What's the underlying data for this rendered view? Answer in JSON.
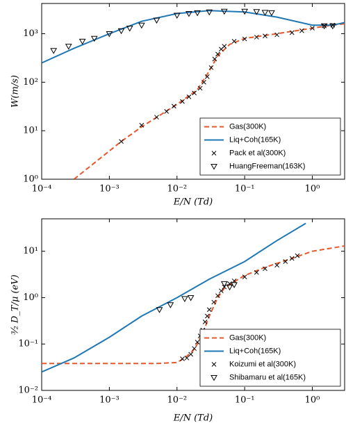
{
  "chart_data": [
    {
      "type": "line",
      "log_scale": true,
      "xlabel": "E/N (Td)",
      "ylabel": "W(m/s)",
      "legend": "lower right",
      "xlim": [
        0.0001,
        3
      ],
      "ylim": [
        1,
        4200
      ],
      "xticks": [
        {
          "value": 0.0001,
          "label": "10⁻⁴"
        },
        {
          "value": 0.001,
          "label": "10⁻³"
        },
        {
          "value": 0.01,
          "label": "10⁻²"
        },
        {
          "value": 0.1,
          "label": "10⁻¹"
        },
        {
          "value": 1,
          "label": "10⁰"
        }
      ],
      "yticks": [
        {
          "value": 1,
          "label": "10⁰"
        },
        {
          "value": 10,
          "label": "10¹"
        },
        {
          "value": 100,
          "label": "10²"
        },
        {
          "value": 1000,
          "label": "10³"
        }
      ],
      "series": [
        {
          "name": "Gas(300K)",
          "color": "#e8572a",
          "marker": "dashed",
          "x": [
            0.0003,
            0.0015,
            0.003,
            0.01,
            0.02,
            0.03,
            0.04,
            0.06,
            0.1,
            0.3,
            1,
            2,
            3
          ],
          "values": [
            1,
            6,
            12,
            35,
            70,
            170,
            350,
            600,
            800,
            1000,
            1300,
            1500,
            1600
          ]
        },
        {
          "name": "Liq+Coh(165K)",
          "color": "#1f77b4",
          "marker": "solid",
          "x": [
            0.0001,
            0.0003,
            0.001,
            0.003,
            0.01,
            0.03,
            0.1,
            0.3,
            1,
            2,
            3
          ],
          "values": [
            250,
            500,
            1000,
            1800,
            2600,
            3000,
            2800,
            2200,
            1500,
            1500,
            1700
          ]
        },
        {
          "name": "Pack et al(300K)",
          "color": "#000000",
          "marker": "x",
          "x": [
            0.0015,
            0.003,
            0.005,
            0.007,
            0.009,
            0.012,
            0.015,
            0.018,
            0.022,
            0.025,
            0.028,
            0.032,
            0.036,
            0.04,
            0.045,
            0.05,
            0.07,
            0.1,
            0.15,
            0.2,
            0.3,
            0.5,
            0.7,
            1,
            1.5,
            2
          ],
          "values": [
            6,
            13,
            19,
            25,
            32,
            40,
            50,
            60,
            75,
            100,
            130,
            200,
            300,
            380,
            480,
            550,
            700,
            780,
            850,
            900,
            950,
            1050,
            1150,
            1300,
            1450,
            1500
          ]
        },
        {
          "name": "HuangFreeman(163K)",
          "color": "#000000",
          "marker": "triangle",
          "x": [
            0.00015,
            0.00025,
            0.0004,
            0.0006,
            0.001,
            0.0015,
            0.002,
            0.003,
            0.005,
            0.01,
            0.015,
            0.02,
            0.03,
            0.05,
            0.1,
            0.15,
            0.2,
            0.25,
            1.5,
            2
          ],
          "values": [
            450,
            550,
            700,
            800,
            1000,
            1150,
            1300,
            1500,
            1900,
            2400,
            2600,
            2700,
            2800,
            2900,
            2900,
            2850,
            2750,
            2700,
            1450,
            1450
          ]
        }
      ]
    },
    {
      "type": "line",
      "log_scale": true,
      "xlabel": "E/N (Td)",
      "ylabel": "³⁄₂ D_T/μ (eV)",
      "legend": "lower right",
      "xlim": [
        0.0001,
        3
      ],
      "ylim": [
        0.01,
        50
      ],
      "xticks": [
        {
          "value": 0.0001,
          "label": "10⁻⁴"
        },
        {
          "value": 0.001,
          "label": "10⁻³"
        },
        {
          "value": 0.01,
          "label": "10⁻²"
        },
        {
          "value": 0.1,
          "label": "10⁻¹"
        },
        {
          "value": 1,
          "label": "10⁰"
        }
      ],
      "yticks": [
        {
          "value": 0.01,
          "label": "10⁻²"
        },
        {
          "value": 0.1,
          "label": "10⁻¹"
        },
        {
          "value": 1,
          "label": "10⁰"
        },
        {
          "value": 10,
          "label": "10¹"
        }
      ],
      "series": [
        {
          "name": "Gas(300K)",
          "color": "#e8572a",
          "marker": "dashed",
          "x": [
            0.0001,
            0.001,
            0.005,
            0.01,
            0.013,
            0.017,
            0.02,
            0.025,
            0.03,
            0.04,
            0.05,
            0.07,
            0.1,
            0.2,
            0.5,
            1,
            3
          ],
          "values": [
            0.038,
            0.038,
            0.038,
            0.04,
            0.05,
            0.07,
            0.1,
            0.2,
            0.4,
            1.0,
            1.6,
            2.2,
            3,
            4.5,
            7,
            10,
            13
          ]
        },
        {
          "name": "Liq+Coh(165K)",
          "color": "#1f77b4",
          "marker": "solid",
          "x": [
            0.0001,
            0.0003,
            0.001,
            0.003,
            0.01,
            0.03,
            0.1,
            0.3,
            0.8
          ],
          "values": [
            0.025,
            0.05,
            0.14,
            0.4,
            1.0,
            2.5,
            6,
            17,
            40
          ]
        },
        {
          "name": "Koizumi et al(300K)",
          "color": "#000000",
          "marker": "x",
          "x": [
            0.012,
            0.014,
            0.016,
            0.018,
            0.02,
            0.022,
            0.024,
            0.026,
            0.028,
            0.03,
            0.035,
            0.04,
            0.045,
            0.05,
            0.06,
            0.07,
            0.1,
            0.15,
            0.2,
            0.3,
            0.4,
            0.5,
            0.6
          ],
          "values": [
            0.048,
            0.05,
            0.06,
            0.08,
            0.11,
            0.15,
            0.2,
            0.3,
            0.4,
            0.55,
            0.8,
            1.1,
            1.4,
            1.7,
            2.0,
            2.3,
            2.8,
            3.5,
            4.2,
            5,
            6,
            7,
            8
          ]
        },
        {
          "name": "Shibamaru et al(165K)",
          "color": "#000000",
          "marker": "triangle",
          "x": [
            0.0055,
            0.008,
            0.013,
            0.016,
            0.05,
            0.06,
            0.07
          ],
          "values": [
            0.55,
            0.7,
            0.95,
            1.0,
            2.0,
            1.7,
            1.9
          ]
        }
      ]
    }
  ]
}
